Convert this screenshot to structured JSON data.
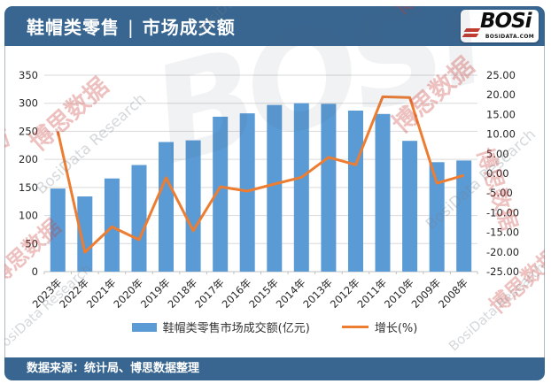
{
  "header": {
    "title_left": "鞋帽类零售",
    "title_separator": "|",
    "title_right": "市场成交额",
    "logo_text": "BOSi",
    "logo_subtext": "BOSIDATA.COM"
  },
  "footer": {
    "source": "数据来源：统计局、博思数据整理"
  },
  "watermarks": {
    "cn": "博思数据",
    "en": "BosiData Research",
    "logo": "BOSi"
  },
  "colors": {
    "header_bg": "#386691",
    "bar": "#5B9BD5",
    "line": "#ED7D31",
    "logo_red": "#C23B2E",
    "gridline": "#D9D9D9",
    "axis": "#BFBFBF"
  },
  "chart_data": {
    "type": "bar+line combo",
    "title": "鞋帽类零售 | 市场成交额",
    "xlabel": "",
    "ylabel_left": "",
    "ylabel_right": "",
    "grid": "horizontal",
    "legend_position": "bottom",
    "categories": [
      "2023年",
      "2022年",
      "2021年",
      "2020年",
      "2019年",
      "2018年",
      "2017年",
      "2016年",
      "2015年",
      "2014年",
      "2013年",
      "2012年",
      "2011年",
      "2010年",
      "2009年",
      "2008年"
    ],
    "series": [
      {
        "name": "鞋帽类零售市场成交额(亿元)",
        "type": "bar",
        "axis": "left",
        "color": "#5B9BD5",
        "values": [
          148,
          134,
          166,
          190,
          231,
          234,
          276,
          282,
          297,
          300,
          299,
          287,
          281,
          233,
          195,
          198
        ]
      },
      {
        "name": "增长(%)",
        "type": "line",
        "axis": "right",
        "color": "#ED7D31",
        "values": [
          10.7,
          -20.1,
          -13.6,
          -16.9,
          -1.1,
          -14.6,
          -3.4,
          -4.5,
          -2.7,
          -1.0,
          4.1,
          2.2,
          19.5,
          19.3,
          -2.5,
          -0.5
        ]
      }
    ],
    "left_axis": {
      "min": 0,
      "max": 350,
      "step": 50,
      "ticks": [
        "350",
        "300",
        "250",
        "200",
        "150",
        "100",
        "50",
        "0"
      ]
    },
    "right_axis": {
      "min": -25,
      "max": 25,
      "step": 5,
      "ticks": [
        "25.00",
        "20.00",
        "15.00",
        "10.00",
        "5.00",
        "0.00",
        "-5.00",
        "-10.00",
        "-15.00",
        "-20.00",
        "-25.00"
      ]
    }
  }
}
